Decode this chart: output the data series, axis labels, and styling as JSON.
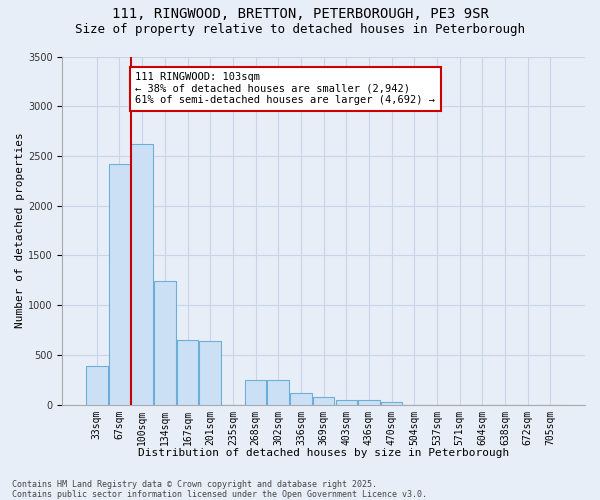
{
  "title": "111, RINGWOOD, BRETTON, PETERBOROUGH, PE3 9SR",
  "subtitle": "Size of property relative to detached houses in Peterborough",
  "xlabel": "Distribution of detached houses by size in Peterborough",
  "ylabel": "Number of detached properties",
  "categories": [
    "33sqm",
    "67sqm",
    "100sqm",
    "134sqm",
    "167sqm",
    "201sqm",
    "235sqm",
    "268sqm",
    "302sqm",
    "336sqm",
    "369sqm",
    "403sqm",
    "436sqm",
    "470sqm",
    "504sqm",
    "537sqm",
    "571sqm",
    "604sqm",
    "638sqm",
    "672sqm",
    "705sqm"
  ],
  "values": [
    390,
    2420,
    2620,
    1240,
    650,
    640,
    0,
    250,
    250,
    120,
    80,
    50,
    50,
    30,
    0,
    0,
    0,
    0,
    0,
    0,
    0
  ],
  "bar_color": "#cce0f5",
  "bar_edge_color": "#6baed6",
  "grid_color": "#c8d4e8",
  "bg_color": "#e8eef8",
  "vline_color": "#cc0000",
  "vline_x_index": 2,
  "annotation_text": "111 RINGWOOD: 103sqm\n← 38% of detached houses are smaller (2,942)\n61% of semi-detached houses are larger (4,692) →",
  "annotation_box_edge_color": "#cc0000",
  "ylim_max": 3500,
  "yticks": [
    0,
    500,
    1000,
    1500,
    2000,
    2500,
    3000,
    3500
  ],
  "footer": "Contains HM Land Registry data © Crown copyright and database right 2025.\nContains public sector information licensed under the Open Government Licence v3.0.",
  "title_fontsize": 10,
  "subtitle_fontsize": 9,
  "axis_label_fontsize": 8,
  "tick_fontsize": 7,
  "annotation_fontsize": 7.5,
  "footer_fontsize": 6
}
